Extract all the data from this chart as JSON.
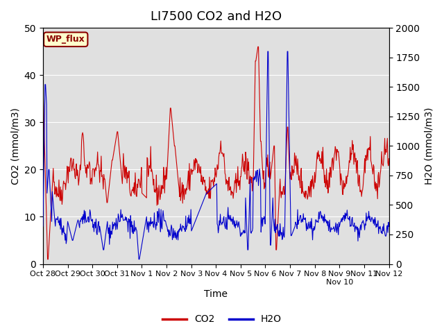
{
  "title": "LI7500 CO2 and H2O",
  "xlabel": "Time",
  "ylabel_left": "CO2 (mmol/m3)",
  "ylabel_right": "H2O (mmol/m3)",
  "co2_ylim": [
    0,
    50
  ],
  "h2o_ylim": [
    0,
    2000
  ],
  "co2_color": "#cc0000",
  "h2o_color": "#0000cc",
  "bg_color": "#e0e0e0",
  "annotation_text": "WP_flux",
  "annotation_bg": "#ffffcc",
  "annotation_border": "#8b0000",
  "legend_co2": "CO2",
  "legend_h2o": "H2O",
  "title_fontsize": 13,
  "axis_fontsize": 10,
  "tick_fontsize": 8,
  "legend_fontsize": 10,
  "n_days": 15,
  "pts_per_day": 48,
  "h2o_scale": 40.0,
  "xtick_positions": [
    0,
    1,
    2,
    3,
    4,
    5,
    6,
    7,
    8,
    9,
    10,
    11,
    12,
    13,
    14
  ],
  "xtick_labels": [
    "Oct 28",
    "Oct 29",
    "Oct 30",
    "Oct 31",
    "Nov 1",
    "Nov 2",
    "Nov 3",
    "Nov 4",
    "Nov 5",
    "Nov 6",
    "Nov 7",
    "Nov 8",
    "Nov 9\nNov 10",
    "Nov 11",
    "Nov 12"
  ]
}
